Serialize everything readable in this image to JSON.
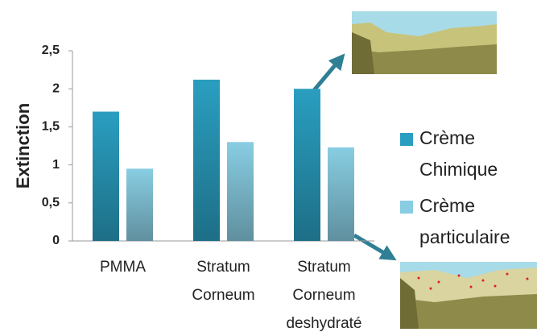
{
  "chart_data": {
    "type": "bar",
    "y_label": "Extinction",
    "categories": [
      "PMMA",
      "Stratum Corneum",
      "Stratum Corneum deshydraté"
    ],
    "series": [
      {
        "name": "Crème Chimique",
        "color": "#2a9ec0",
        "values": [
          1.7,
          2.12,
          2.0
        ]
      },
      {
        "name": "Crème particulaire",
        "color": "#88cde2",
        "values": [
          0.95,
          1.3,
          1.23
        ]
      }
    ],
    "ylim": [
      0,
      2.5
    ],
    "yticks": [
      {
        "value": 0,
        "label": "0"
      },
      {
        "value": 0.5,
        "label": "0,5"
      },
      {
        "value": 1,
        "label": "1"
      },
      {
        "value": 1.5,
        "label": "1,5"
      },
      {
        "value": 2,
        "label": "2"
      },
      {
        "value": 2.5,
        "label": "2,5"
      }
    ],
    "grid": false
  }
}
